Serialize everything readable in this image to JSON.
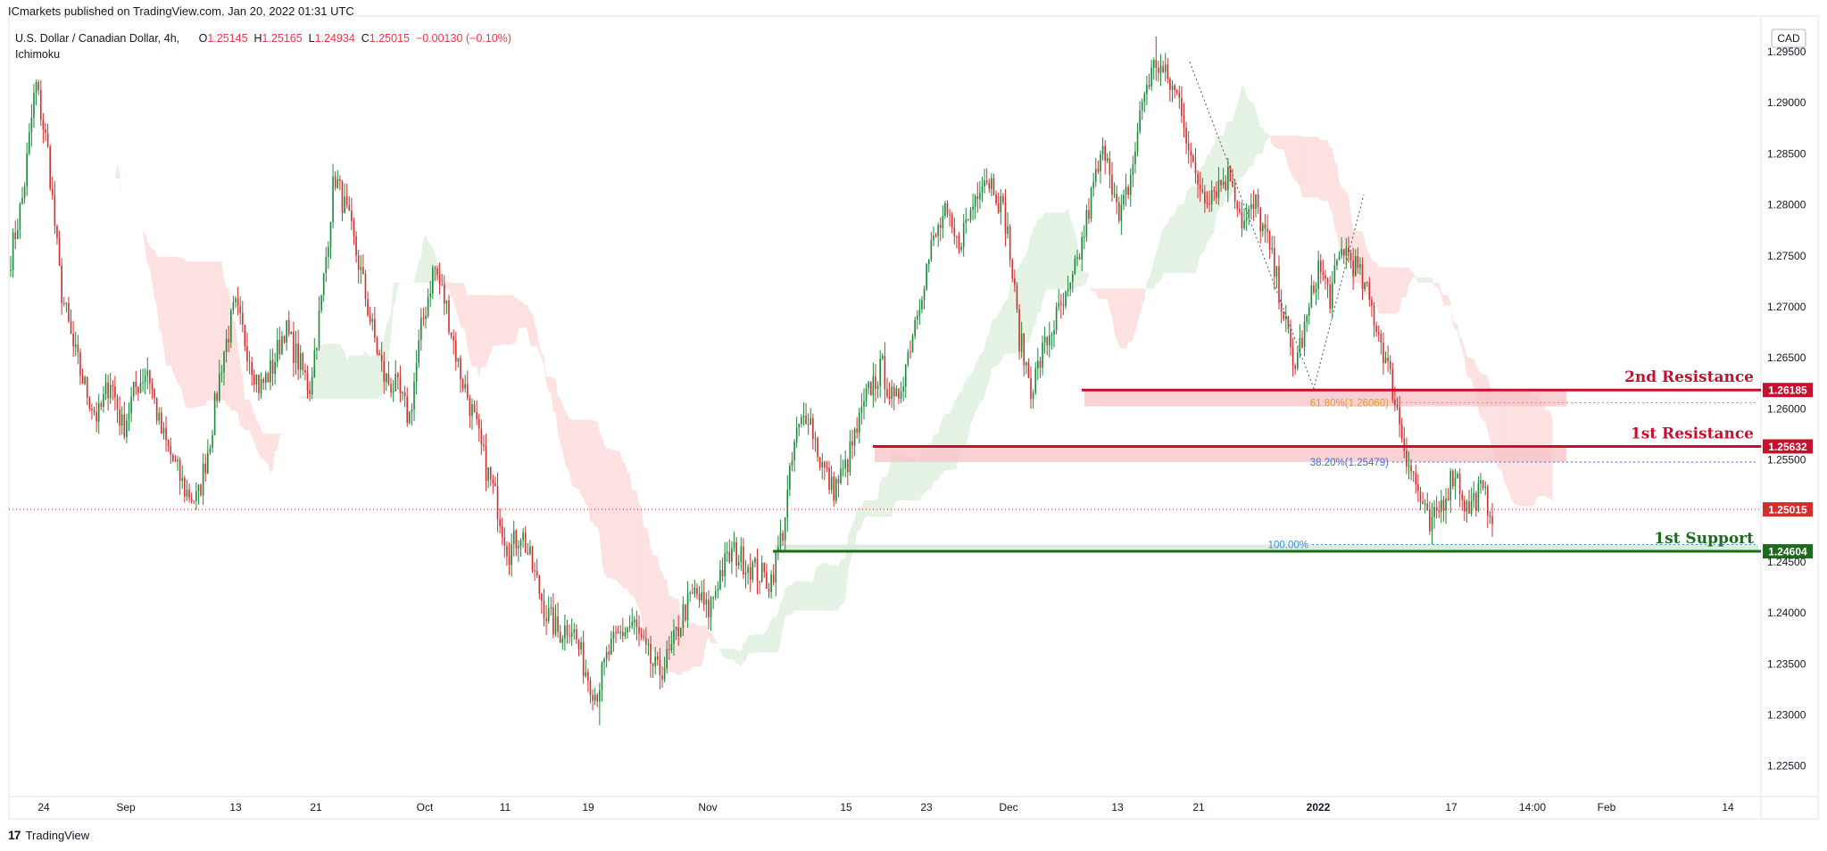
{
  "header": {
    "publisher": "ICmarkets published on TradingView.com, Jan 20, 2022 01:31 UTC",
    "symbol": "U.S. Dollar / Canadian Dollar, 4h,",
    "indicator": "Ichimoku",
    "ohlc": {
      "o_label": "O",
      "o": "1.25145",
      "h_label": "H",
      "h": "1.25165",
      "l_label": "L",
      "l": "1.24934",
      "c_label": "C",
      "c": "1.25015",
      "change": "−0.00130 (−0.10%)"
    }
  },
  "currency_badge": "CAD",
  "footer": {
    "logo_glyph": "17",
    "brand": "TradingView"
  },
  "colors": {
    "up": "#26a69a",
    "up_body": "#1b8a3c",
    "down": "#d32f2f",
    "resistance": "#c8102e",
    "resistance_zone": "#f8c4c8",
    "support": "#1e6b1e",
    "support_zone": "#d6ecd6",
    "cloud_bull": "#e3f2e3",
    "cloud_bear": "#fde0e0",
    "fib_382": "#3a6fd8",
    "fib_618": "#e09a2a",
    "fib_100": "#3a8fd8"
  },
  "chart_data": {
    "type": "candlestick",
    "interval": "4h",
    "y_range": [
      1.222,
      1.2985
    ],
    "price_ticks": [
      "1.29500",
      "1.29000",
      "1.28500",
      "1.28000",
      "1.27500",
      "1.27000",
      "1.26500",
      "1.26000",
      "1.25500",
      "1.25000",
      "1.24500",
      "1.24000",
      "1.23500",
      "1.23000",
      "1.22500"
    ],
    "x_ticks": [
      {
        "label": "24",
        "bold": false
      },
      {
        "label": "Sep",
        "bold": false
      },
      {
        "label": "13",
        "bold": false
      },
      {
        "label": "21",
        "bold": false
      },
      {
        "label": "Oct",
        "bold": false
      },
      {
        "label": "11",
        "bold": false
      },
      {
        "label": "19",
        "bold": false
      },
      {
        "label": "Nov",
        "bold": false
      },
      {
        "label": "15",
        "bold": false
      },
      {
        "label": "23",
        "bold": false
      },
      {
        "label": "Dec",
        "bold": false
      },
      {
        "label": "13",
        "bold": false
      },
      {
        "label": "21",
        "bold": false
      },
      {
        "label": "2022",
        "bold": true
      },
      {
        "label": "17",
        "bold": false
      },
      {
        "label": "14:00",
        "bold": false
      },
      {
        "label": "Feb",
        "bold": false
      },
      {
        "label": "14",
        "bold": false
      }
    ],
    "price_path": [
      1.275,
      1.281,
      1.292,
      1.285,
      1.272,
      1.266,
      1.262,
      1.259,
      1.263,
      1.258,
      1.262,
      1.264,
      1.258,
      1.255,
      1.252,
      1.251,
      1.257,
      1.265,
      1.27,
      1.266,
      1.262,
      1.264,
      1.268,
      1.265,
      1.262,
      1.271,
      1.283,
      1.279,
      1.274,
      1.268,
      1.263,
      1.262,
      1.259,
      1.268,
      1.274,
      1.27,
      1.264,
      1.26,
      1.255,
      1.251,
      1.246,
      1.248,
      1.244,
      1.24,
      1.238,
      1.239,
      1.235,
      1.232,
      1.236,
      1.238,
      1.239,
      1.236,
      1.234,
      1.236,
      1.24,
      1.242,
      1.24,
      1.244,
      1.246,
      1.245,
      1.244,
      1.243,
      1.248,
      1.257,
      1.26,
      1.255,
      1.252,
      1.254,
      1.258,
      1.262,
      1.264,
      1.26,
      1.265,
      1.271,
      1.276,
      1.279,
      1.276,
      1.279,
      1.283,
      1.282,
      1.278,
      1.267,
      1.262,
      1.266,
      1.269,
      1.271,
      1.276,
      1.282,
      1.286,
      1.278,
      1.283,
      1.291,
      1.294,
      1.292,
      1.29,
      1.283,
      1.281,
      1.282,
      1.283,
      1.278,
      1.28,
      1.276,
      1.271,
      1.264,
      1.268,
      1.274,
      1.271,
      1.276,
      1.274,
      1.271,
      1.267,
      1.262,
      1.256,
      1.252,
      1.248,
      1.251,
      1.254,
      1.25,
      1.252,
      1.25
    ],
    "price_path_high": 1.2965,
    "price_path_low": 1.229,
    "last_price": "1.25015",
    "levels": [
      {
        "name": "2nd Resistance",
        "price": 1.26185,
        "tag": "1.26185",
        "kind": "resistance"
      },
      {
        "name": "1st Resistance",
        "price": 1.25632,
        "tag": "1.25632",
        "kind": "resistance"
      },
      {
        "name": "1st Support",
        "price": 1.24604,
        "tag": "1.24604",
        "kind": "support"
      }
    ],
    "fibonacci": [
      {
        "label": "61.80%(1.26060)",
        "price": 1.2606
      },
      {
        "label": "38.20%(1.25479)",
        "price": 1.25479
      },
      {
        "label": "100.00%",
        "price": 1.2467
      }
    ]
  }
}
